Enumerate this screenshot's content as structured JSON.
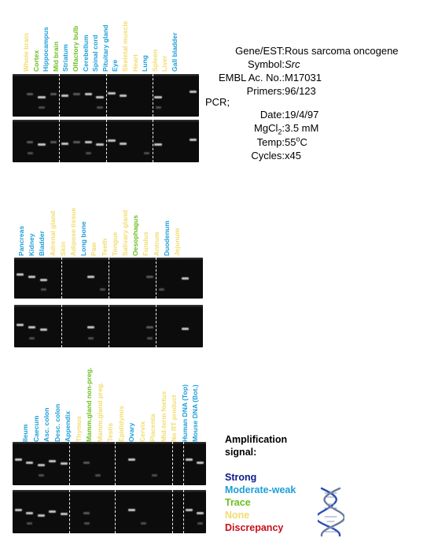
{
  "colors": {
    "strong": "#0b1a8c",
    "moderate_weak": "#1e9fd8",
    "trace": "#6cbf1e",
    "none": "#f2dc6e",
    "discrepancy": "#c8101a"
  },
  "info": {
    "gene_label": "Gene/EST:",
    "gene_value": "Rous sarcoma oncogene",
    "symbol_label": "Symbol:",
    "symbol_value": "Src",
    "embl_label": "EMBL Ac. No.:",
    "embl_value": "M17031",
    "primers_label": "Primers:",
    "primers_value": "96/123",
    "pcr_label": "PCR;",
    "date_label": "Date:",
    "date_value": "19/4/97",
    "mgcl_label_main": "MgCl",
    "mgcl_label_sub": "2",
    "mgcl_label_colon": ":",
    "mgcl_value": "3.5 mM",
    "temp_label": "Temp:",
    "temp_value_main": "55",
    "temp_value_sup": "o",
    "temp_value_unit": "C",
    "cycles_label": "Cycles:",
    "cycles_value": "x45"
  },
  "legend": {
    "title_line1": "Amplification",
    "title_line2": "signal:",
    "items": [
      {
        "label": "Strong",
        "level": "strong"
      },
      {
        "label": "Moderate-weak",
        "level": "moderate_weak"
      },
      {
        "label": "Trace",
        "level": "trace"
      },
      {
        "label": "None",
        "level": "none"
      },
      {
        "label": "Discrepancy",
        "level": "discrepancy"
      }
    ],
    "dna_icon": "dna-helix-icon"
  },
  "panels": [
    {
      "name": "panel-1",
      "tissues": [
        {
          "label": "Whole brain",
          "level": "none"
        },
        {
          "label": "Cortex",
          "level": "trace"
        },
        {
          "label": "Hippocampus",
          "level": "moderate_weak"
        },
        {
          "label": "Mid brain",
          "level": "trace"
        },
        {
          "label": "Striatum",
          "level": "moderate_weak"
        },
        {
          "label": "Olfactory bulb",
          "level": "trace"
        },
        {
          "label": "Cerebellum",
          "level": "moderate_weak"
        },
        {
          "label": "Spinal cord",
          "level": "moderate_weak"
        },
        {
          "label": "Pituitary gland",
          "level": "moderate_weak"
        },
        {
          "label": "Eye",
          "level": "moderate_weak"
        },
        {
          "label": "Skeletal  muscle",
          "level": "none"
        },
        {
          "label": "Heart",
          "level": "none"
        },
        {
          "label": "Lung",
          "level": "moderate_weak"
        },
        {
          "label": "Spleen",
          "level": "none"
        },
        {
          "label": "Liver",
          "level": "none"
        },
        {
          "label": "Gall bladder",
          "level": "moderate_weak"
        }
      ]
    },
    {
      "name": "panel-2",
      "tissues": [
        {
          "label": "Pancreas",
          "level": "moderate_weak"
        },
        {
          "label": "Kidney",
          "level": "moderate_weak"
        },
        {
          "label": "Bladder",
          "level": "moderate_weak"
        },
        {
          "label": "Adrenal gland",
          "level": "none"
        },
        {
          "label": "Skin",
          "level": "none"
        },
        {
          "label": "Adipose tissue",
          "level": "none"
        },
        {
          "label": "Long bone",
          "level": "moderate_weak"
        },
        {
          "label": "Paw",
          "level": "none"
        },
        {
          "label": "Teeth",
          "level": "none"
        },
        {
          "label": "Tongue",
          "level": "none"
        },
        {
          "label": "Salivary gland",
          "level": "none"
        },
        {
          "label": "Oesophagus",
          "level": "trace"
        },
        {
          "label": "Fundus",
          "level": "none"
        },
        {
          "label": "Antrum",
          "level": "none"
        },
        {
          "label": "Duodenum",
          "level": "moderate_weak"
        },
        {
          "label": "Jejunum",
          "level": "none"
        }
      ]
    },
    {
      "name": "panel-3",
      "tissues": [
        {
          "label": "Ileum",
          "level": "moderate_weak"
        },
        {
          "label": "Caecum",
          "level": "moderate_weak"
        },
        {
          "label": "Asc. colon",
          "level": "moderate_weak"
        },
        {
          "label": "Desc. colon",
          "level": "moderate_weak"
        },
        {
          "label": "Appendix",
          "level": "moderate_weak"
        },
        {
          "label": "Thymus",
          "level": "none"
        },
        {
          "label": "Mamm.gland non-preg.",
          "level": "trace"
        },
        {
          "label": "Mamm.gland preg.",
          "level": "none"
        },
        {
          "label": "Testis",
          "level": "none"
        },
        {
          "label": "Epididymis",
          "level": "none"
        },
        {
          "label": "Ovary",
          "level": "moderate_weak"
        },
        {
          "label": "Cervix",
          "level": "none"
        },
        {
          "label": "Placenta",
          "level": "none"
        },
        {
          "label": "Mid-term foetus",
          "level": "none"
        },
        {
          "label": "No RT product",
          "level": "none"
        },
        {
          "label": "Human DNA (Top)",
          "level": "moderate_weak"
        },
        {
          "label": "Mouse DNA (Bot.)",
          "level": "moderate_weak"
        }
      ]
    }
  ]
}
